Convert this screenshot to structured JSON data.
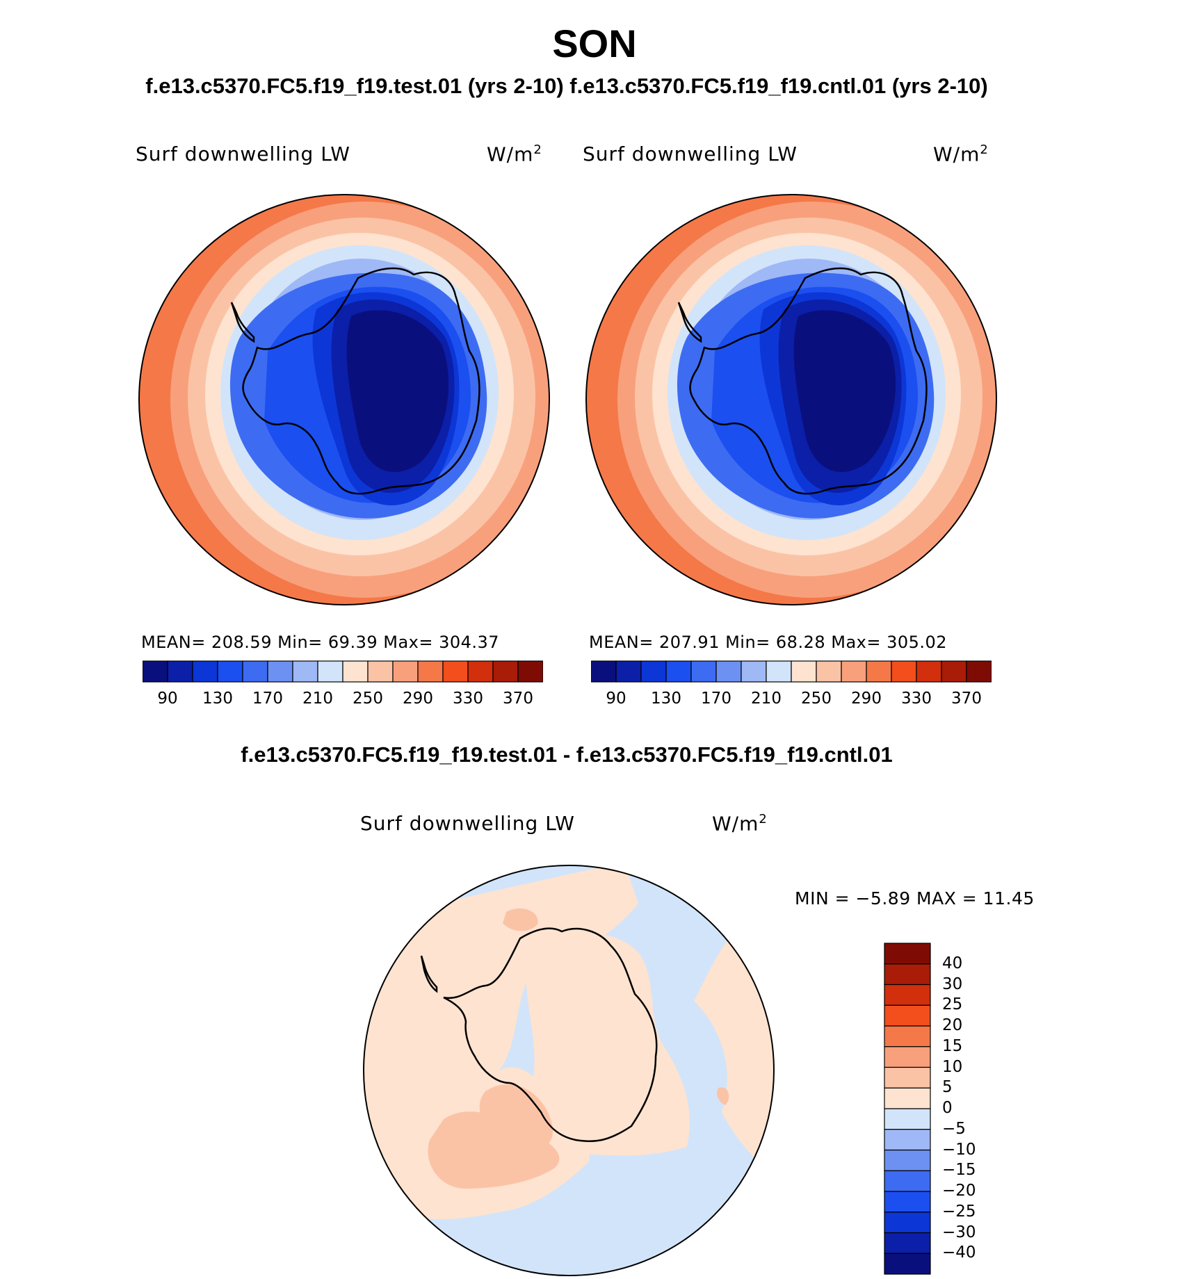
{
  "title": "SON",
  "subtitle": "f.e13.c5370.FC5.f19_f19.test.01 (yrs 2-10) f.e13.c5370.FC5.f19_f19.cntl.01 (yrs 2-10)",
  "diff_title": "f.e13.c5370.FC5.f19_f19.test.01 - f.e13.c5370.FC5.f19_f19.cntl.01",
  "panels": [
    {
      "variable": "Surf downwelling LW",
      "units": "W/m",
      "units_sup": "2",
      "stats": "MEAN= 208.59   Min=   69.39   Max= 304.37"
    },
    {
      "variable": "Surf downwelling LW",
      "units": "W/m",
      "units_sup": "2",
      "stats": "MEAN= 207.91   Min=   68.28   Max= 305.02"
    }
  ],
  "diff_panel": {
    "variable": "Surf downwelling LW",
    "units": "W/m",
    "units_sup": "2",
    "stats": "MIN =   −5.89 MAX =   11.45"
  },
  "colorbar_main": {
    "colors": [
      "#0a0f7e",
      "#0b1fa8",
      "#0d36d6",
      "#1b4ff0",
      "#3d6cf2",
      "#6c91f3",
      "#9fb8f6",
      "#d2e4fa",
      "#fde3d0",
      "#fbc3a6",
      "#f8a07c",
      "#f57849",
      "#f24f1d",
      "#d22f0d",
      "#a91c07",
      "#7f0c04"
    ],
    "ticks": [
      "90",
      "130",
      "170",
      "210",
      "250",
      "290",
      "330",
      "370"
    ]
  },
  "colorbar_diff": {
    "colors": [
      "#0a0f7e",
      "#0b1fa8",
      "#0d36d6",
      "#1b4ff0",
      "#3d6cf2",
      "#6c91f3",
      "#9fb8f6",
      "#d2e4fa",
      "#fde3d0",
      "#fbc3a6",
      "#f8a07c",
      "#f57849",
      "#f24f1d",
      "#d22f0d",
      "#a91c07",
      "#7f0c04"
    ],
    "ticks": [
      "40",
      "30",
      "25",
      "20",
      "15",
      "10",
      "5",
      "0",
      "−5",
      "−10",
      "−15",
      "−20",
      "−25",
      "−30",
      "−40"
    ]
  }
}
